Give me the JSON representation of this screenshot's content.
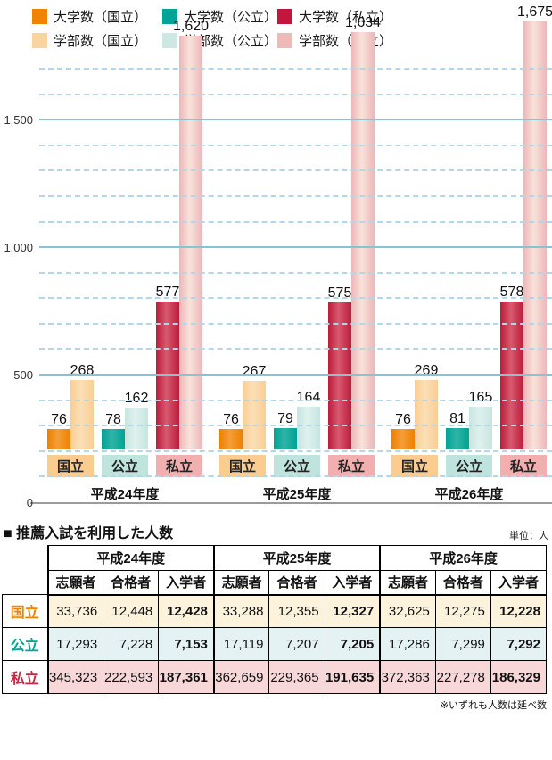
{
  "legend": {
    "items": [
      {
        "label": "大学数（国立）",
        "color": "#F08300"
      },
      {
        "label": "大学数（公立）",
        "color": "#00A496"
      },
      {
        "label": "大学数（私立）",
        "color": "#C4163C"
      },
      {
        "label": "学部数（国立）",
        "color": "#F9D49E"
      },
      {
        "label": "学部数（公立）",
        "color": "#CDE7E2"
      },
      {
        "label": "学部数（私立）",
        "color": "#EFB9B7"
      }
    ]
  },
  "chart_data": {
    "type": "bar",
    "title": "",
    "xlabel": "",
    "ylabel": "",
    "ylim": [
      0,
      1700
    ],
    "grid": "on",
    "legend_position": "top",
    "y_ticks": [
      {
        "value": 0,
        "label": "0"
      },
      {
        "value": 500,
        "label": "500"
      },
      {
        "value": 1000,
        "label": "1,000"
      },
      {
        "value": 1500,
        "label": "1,500"
      }
    ],
    "gridline_minor_step": 100,
    "gridline_major_step": 500,
    "series_names": [
      "大学数",
      "学部数"
    ],
    "bar_colors": {
      "国立": {
        "univ": [
          "#EE8000",
          "#F59E38"
        ],
        "faculty": [
          "#F9CE94",
          "#FBDFB6"
        ],
        "badge": "#FACC90"
      },
      "公立": {
        "univ": [
          "#00A394",
          "#2FB4A7"
        ],
        "faculty": [
          "#C6E5E0",
          "#DFF1EE"
        ],
        "badge": "#BFE3DD"
      },
      "私立": {
        "univ": [
          "#BB1C3C",
          "#D75A6E"
        ],
        "faculty": [
          "#ECB7B8",
          "#F8E2DA"
        ],
        "badge": "#F2AFAF"
      }
    },
    "groups": [
      {
        "year_label": "平成24年度",
        "categories": [
          {
            "label": "国立",
            "univ": {
              "value": 76,
              "label": "76"
            },
            "faculty": {
              "value": 268,
              "label": "268"
            }
          },
          {
            "label": "公立",
            "univ": {
              "value": 78,
              "label": "78"
            },
            "faculty": {
              "value": 162,
              "label": "162"
            }
          },
          {
            "label": "私立",
            "univ": {
              "value": 577,
              "label": "577"
            },
            "faculty": {
              "value": 1620,
              "label": "1,620"
            }
          }
        ]
      },
      {
        "year_label": "平成25年度",
        "categories": [
          {
            "label": "国立",
            "univ": {
              "value": 76,
              "label": "76"
            },
            "faculty": {
              "value": 267,
              "label": "267"
            }
          },
          {
            "label": "公立",
            "univ": {
              "value": 79,
              "label": "79"
            },
            "faculty": {
              "value": 164,
              "label": "164"
            }
          },
          {
            "label": "私立",
            "univ": {
              "value": 575,
              "label": "575"
            },
            "faculty": {
              "value": 1634,
              "label": "1,634"
            }
          }
        ]
      },
      {
        "year_label": "平成26年度",
        "categories": [
          {
            "label": "国立",
            "univ": {
              "value": 76,
              "label": "76"
            },
            "faculty": {
              "value": 269,
              "label": "269"
            }
          },
          {
            "label": "公立",
            "univ": {
              "value": 81,
              "label": "81"
            },
            "faculty": {
              "value": 165,
              "label": "165"
            }
          },
          {
            "label": "私立",
            "univ": {
              "value": 578,
              "label": "578"
            },
            "faculty": {
              "value": 1675,
              "label": "1,675"
            }
          }
        ]
      }
    ]
  },
  "table": {
    "title": "■ 推薦入試を利用した人数",
    "unit_note": "単位：人",
    "year_headers": [
      "平成24年度",
      "平成25年度",
      "平成26年度"
    ],
    "sub_headers": [
      "志願者",
      "合格者",
      "入学者"
    ],
    "bold_columns": [
      2,
      5,
      8
    ],
    "rows": [
      {
        "label": "国立",
        "label_color": "#F08300",
        "row_bg": "#FDF3DC",
        "values": [
          "33,736",
          "12,448",
          "12,428",
          "33,288",
          "12,355",
          "12,327",
          "32,625",
          "12,275",
          "12,228"
        ]
      },
      {
        "label": "公立",
        "label_color": "#00A496",
        "row_bg": "#E4F2F4",
        "values": [
          "17,293",
          "7,228",
          "7,153",
          "17,119",
          "7,207",
          "7,205",
          "17,286",
          "7,299",
          "7,292"
        ]
      },
      {
        "label": "私立",
        "label_color": "#C52A45",
        "row_bg": "#F7D7D8",
        "values": [
          "345,323",
          "222,593",
          "187,361",
          "362,659",
          "229,365",
          "191,635",
          "372,363",
          "227,278",
          "186,329"
        ]
      }
    ],
    "footnote": "※いずれも人数は延べ数"
  }
}
